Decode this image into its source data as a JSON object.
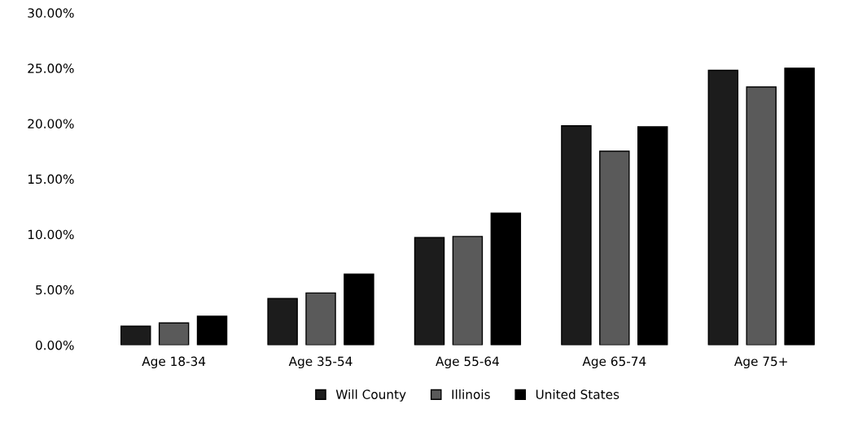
{
  "chart_data": {
    "type": "bar",
    "categories": [
      "Age 18-34",
      "Age 35-54",
      "Age 55-64",
      "Age 65-74",
      "Age 75+"
    ],
    "series": [
      {
        "name": "Will County",
        "color": "#1c1c1c",
        "values": [
          1.7,
          4.2,
          9.7,
          19.8,
          24.8
        ]
      },
      {
        "name": "Illinois",
        "color": "#5a5a5a",
        "values": [
          2.0,
          4.7,
          9.8,
          17.5,
          23.3
        ]
      },
      {
        "name": "United States",
        "color": "#000000",
        "values": [
          2.6,
          6.4,
          11.9,
          19.7,
          25.0
        ]
      }
    ],
    "ylim": [
      0,
      30
    ],
    "yticks": [
      {
        "value": 0,
        "label": "0.00%"
      },
      {
        "value": 5,
        "label": "5.00%"
      },
      {
        "value": 10,
        "label": "10.00%"
      },
      {
        "value": 15,
        "label": "15.00%"
      },
      {
        "value": 20,
        "label": "20.00%"
      },
      {
        "value": 25,
        "label": "25.00%"
      },
      {
        "value": 30,
        "label": "30.00%"
      }
    ],
    "grid": false,
    "legend": "bottom"
  }
}
